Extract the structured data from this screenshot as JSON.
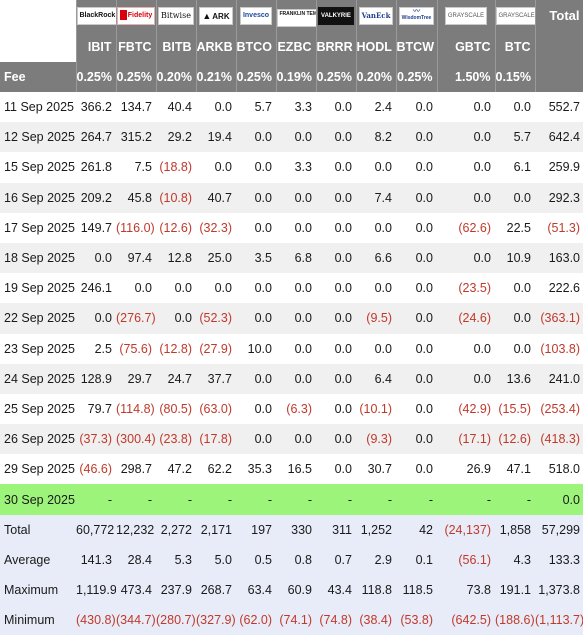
{
  "header": {
    "total_label": "Total",
    "fee_label": "Fee",
    "columns": [
      {
        "ticker": "IBIT",
        "logo_text": "BlackRock",
        "logo_icon": "blackrock-logo",
        "fee": "0.25%"
      },
      {
        "ticker": "FBTC",
        "logo_text": "Fidelity",
        "logo_icon": "fidelity-logo",
        "fee": "0.25%"
      },
      {
        "ticker": "BITB",
        "logo_text": "Bitwise",
        "logo_icon": "bitwise-logo",
        "fee": "0.20%"
      },
      {
        "ticker": "ARKB",
        "logo_text": "ARK",
        "logo_icon": "ark-invest-logo",
        "fee": "0.21%"
      },
      {
        "ticker": "BTCO",
        "logo_text": "Invesco",
        "logo_icon": "invesco-logo",
        "fee": "0.25%"
      },
      {
        "ticker": "EZBC",
        "logo_text": "FRANKLIN TEMPLETON",
        "logo_icon": "franklin-templeton-logo",
        "fee": "0.19%"
      },
      {
        "ticker": "BRRR",
        "logo_text": "VALKYRIE",
        "logo_icon": "valkyrie-logo",
        "fee": "0.25%"
      },
      {
        "ticker": "HODL",
        "logo_text": "VanEck",
        "logo_icon": "vaneck-logo",
        "fee": "0.20%"
      },
      {
        "ticker": "BTCW",
        "logo_text": "WisdomTree",
        "logo_icon": "wisdomtree-logo",
        "fee": "0.25%"
      },
      {
        "ticker": "GBTC",
        "logo_text": "GRAYSCALE",
        "logo_icon": "grayscale-logo",
        "fee": "1.50%"
      },
      {
        "ticker": "BTC",
        "logo_text": "GRAYSCALE",
        "logo_icon": "grayscale-logo",
        "fee": "0.15%"
      }
    ]
  },
  "rows": [
    {
      "date": "11 Sep 2025",
      "values": [
        "366.2",
        "134.7",
        "40.4",
        "0.0",
        "5.7",
        "3.3",
        "0.0",
        "2.4",
        "0.0",
        "0.0",
        "0.0"
      ],
      "total": "552.7"
    },
    {
      "date": "12 Sep 2025",
      "values": [
        "264.7",
        "315.2",
        "29.2",
        "19.4",
        "0.0",
        "0.0",
        "0.0",
        "8.2",
        "0.0",
        "0.0",
        "5.7"
      ],
      "total": "642.4"
    },
    {
      "date": "15 Sep 2025",
      "values": [
        "261.8",
        "7.5",
        "(18.8)",
        "0.0",
        "0.0",
        "3.3",
        "0.0",
        "0.0",
        "0.0",
        "0.0",
        "6.1"
      ],
      "total": "259.9"
    },
    {
      "date": "16 Sep 2025",
      "values": [
        "209.2",
        "45.8",
        "(10.8)",
        "40.7",
        "0.0",
        "0.0",
        "0.0",
        "7.4",
        "0.0",
        "0.0",
        "0.0"
      ],
      "total": "292.3"
    },
    {
      "date": "17 Sep 2025",
      "values": [
        "149.7",
        "(116.0)",
        "(12.6)",
        "(32.3)",
        "0.0",
        "0.0",
        "0.0",
        "0.0",
        "0.0",
        "(62.6)",
        "22.5"
      ],
      "total": "(51.3)"
    },
    {
      "date": "18 Sep 2025",
      "values": [
        "0.0",
        "97.4",
        "12.8",
        "25.0",
        "3.5",
        "6.8",
        "0.0",
        "6.6",
        "0.0",
        "0.0",
        "10.9"
      ],
      "total": "163.0"
    },
    {
      "date": "19 Sep 2025",
      "values": [
        "246.1",
        "0.0",
        "0.0",
        "0.0",
        "0.0",
        "0.0",
        "0.0",
        "0.0",
        "0.0",
        "(23.5)",
        "0.0"
      ],
      "total": "222.6"
    },
    {
      "date": "22 Sep 2025",
      "values": [
        "0.0",
        "(276.7)",
        "0.0",
        "(52.3)",
        "0.0",
        "0.0",
        "0.0",
        "(9.5)",
        "0.0",
        "(24.6)",
        "0.0"
      ],
      "total": "(363.1)"
    },
    {
      "date": "23 Sep 2025",
      "values": [
        "2.5",
        "(75.6)",
        "(12.8)",
        "(27.9)",
        "10.0",
        "0.0",
        "0.0",
        "0.0",
        "0.0",
        "0.0",
        "0.0"
      ],
      "total": "(103.8)"
    },
    {
      "date": "24 Sep 2025",
      "values": [
        "128.9",
        "29.7",
        "24.7",
        "37.7",
        "0.0",
        "0.0",
        "0.0",
        "6.4",
        "0.0",
        "0.0",
        "13.6"
      ],
      "total": "241.0"
    },
    {
      "date": "25 Sep 2025",
      "values": [
        "79.7",
        "(114.8)",
        "(80.5)",
        "(63.0)",
        "0.0",
        "(6.3)",
        "0.0",
        "(10.1)",
        "0.0",
        "(42.9)",
        "(15.5)"
      ],
      "total": "(253.4)"
    },
    {
      "date": "26 Sep 2025",
      "values": [
        "(37.3)",
        "(300.4)",
        "(23.8)",
        "(17.8)",
        "0.0",
        "0.0",
        "0.0",
        "(9.3)",
        "0.0",
        "(17.1)",
        "(12.6)"
      ],
      "total": "(418.3)"
    },
    {
      "date": "29 Sep 2025",
      "values": [
        "(46.6)",
        "298.7",
        "47.2",
        "62.2",
        "35.3",
        "16.5",
        "0.0",
        "30.7",
        "0.0",
        "26.9",
        "47.1"
      ],
      "total": "518.0"
    },
    {
      "date": "30 Sep 2025",
      "values": [
        "-",
        "-",
        "-",
        "-",
        "-",
        "-",
        "-",
        "-",
        "-",
        "-",
        "-"
      ],
      "total": "0.0",
      "highlight": true
    }
  ],
  "summary": [
    {
      "label": "Total",
      "values": [
        "60,772",
        "12,232",
        "2,272",
        "2,171",
        "197",
        "330",
        "311",
        "1,252",
        "42",
        "(24,137)",
        "1,858"
      ],
      "total": "57,299"
    },
    {
      "label": "Average",
      "values": [
        "141.3",
        "28.4",
        "5.3",
        "5.0",
        "0.5",
        "0.8",
        "0.7",
        "2.9",
        "0.1",
        "(56.1)",
        "4.3"
      ],
      "total": "133.3"
    },
    {
      "label": "Maximum",
      "values": [
        "1,119.9",
        "473.4",
        "237.9",
        "268.7",
        "63.4",
        "60.9",
        "43.4",
        "118.8",
        "118.5",
        "73.8",
        "191.1"
      ],
      "total": "1,373.8"
    },
    {
      "label": "Minimum",
      "values": [
        "(430.8)",
        "(344.7)",
        "(280.7)",
        "(327.9)",
        "(62.0)",
        "(74.1)",
        "(74.8)",
        "(38.4)",
        "(53.8)",
        "(642.5)",
        "(188.6)"
      ],
      "total": "(1,113.7)"
    }
  ],
  "colors": {
    "header_bg": "#7c7c7c",
    "negative": "#c0392b",
    "highlight": "#9cf57a",
    "summary_bg": "#e8ecf8",
    "row_alt": "#f0f0f0"
  }
}
